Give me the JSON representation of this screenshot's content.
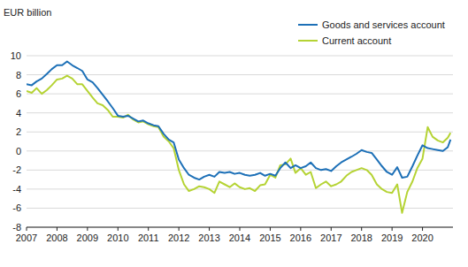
{
  "chart_data": {
    "type": "line",
    "y_label": "EUR billion",
    "x": [
      2007.0,
      2007.17,
      2007.33,
      2007.5,
      2007.67,
      2007.83,
      2008.0,
      2008.17,
      2008.33,
      2008.5,
      2008.67,
      2008.83,
      2009.0,
      2009.17,
      2009.33,
      2009.5,
      2009.67,
      2009.83,
      2010.0,
      2010.17,
      2010.33,
      2010.5,
      2010.67,
      2010.83,
      2011.0,
      2011.17,
      2011.33,
      2011.5,
      2011.67,
      2011.83,
      2012.0,
      2012.17,
      2012.33,
      2012.5,
      2012.67,
      2012.83,
      2013.0,
      2013.17,
      2013.33,
      2013.5,
      2013.67,
      2013.83,
      2014.0,
      2014.17,
      2014.33,
      2014.5,
      2014.67,
      2014.83,
      2015.0,
      2015.17,
      2015.33,
      2015.5,
      2015.67,
      2015.83,
      2016.0,
      2016.17,
      2016.33,
      2016.5,
      2016.67,
      2016.83,
      2017.0,
      2017.17,
      2017.33,
      2017.5,
      2017.67,
      2017.83,
      2018.0,
      2018.17,
      2018.33,
      2018.5,
      2018.67,
      2018.83,
      2019.0,
      2019.17,
      2019.33,
      2019.5,
      2019.67,
      2019.83,
      2020.0,
      2020.17,
      2020.33,
      2020.5,
      2020.67,
      2020.83,
      2020.92
    ],
    "series": [
      {
        "name": "Goods and services account",
        "color": "#1d70b7",
        "values": [
          7.0,
          6.9,
          7.3,
          7.6,
          8.1,
          8.6,
          9.0,
          9.0,
          9.4,
          9.0,
          8.7,
          8.4,
          7.5,
          7.2,
          6.6,
          5.9,
          5.2,
          4.5,
          3.7,
          3.6,
          3.7,
          3.4,
          3.1,
          3.2,
          2.9,
          2.7,
          2.6,
          1.8,
          1.2,
          0.9,
          -0.9,
          -1.8,
          -2.5,
          -2.8,
          -3.0,
          -2.7,
          -2.5,
          -2.7,
          -2.2,
          -2.3,
          -2.2,
          -2.4,
          -2.3,
          -2.5,
          -2.6,
          -2.5,
          -2.3,
          -2.6,
          -2.4,
          -2.6,
          -1.8,
          -1.2,
          -1.8,
          -1.5,
          -1.8,
          -1.6,
          -1.2,
          -1.8,
          -2.0,
          -1.9,
          -2.1,
          -1.6,
          -1.2,
          -0.9,
          -0.6,
          -0.3,
          0.1,
          -0.1,
          -0.2,
          -0.9,
          -1.6,
          -2.2,
          -2.5,
          -1.7,
          -2.8,
          -2.7,
          -1.6,
          -0.5,
          0.6,
          0.3,
          0.2,
          0.1,
          0.0,
          0.4,
          1.2
        ]
      },
      {
        "name": "Current account",
        "color": "#b5d334",
        "values": [
          6.3,
          6.1,
          6.6,
          6.0,
          6.4,
          6.9,
          7.5,
          7.6,
          7.9,
          7.6,
          7.0,
          7.0,
          6.3,
          5.6,
          5.0,
          4.8,
          4.3,
          3.6,
          3.6,
          3.5,
          3.8,
          3.3,
          3.0,
          3.1,
          2.8,
          2.6,
          2.5,
          1.5,
          1.0,
          0.3,
          -2.0,
          -3.5,
          -4.2,
          -4.0,
          -3.7,
          -3.8,
          -4.0,
          -4.4,
          -3.2,
          -3.5,
          -3.8,
          -3.4,
          -3.8,
          -4.0,
          -3.9,
          -4.2,
          -3.6,
          -3.5,
          -2.5,
          -2.8,
          -1.5,
          -1.4,
          -0.8,
          -2.3,
          -1.8,
          -2.5,
          -2.2,
          -3.9,
          -3.5,
          -3.2,
          -3.7,
          -3.5,
          -3.2,
          -2.6,
          -2.2,
          -2.0,
          -1.8,
          -2.0,
          -2.5,
          -3.5,
          -4.0,
          -4.3,
          -4.4,
          -3.5,
          -6.5,
          -4.3,
          -3.2,
          -1.8,
          -0.8,
          2.5,
          1.5,
          1.1,
          0.9,
          1.4,
          1.9
        ]
      }
    ],
    "xlim": [
      2007,
      2021
    ],
    "xticks": [
      2007,
      2008,
      2009,
      2010,
      2011,
      2012,
      2013,
      2014,
      2015,
      2016,
      2017,
      2018,
      2019,
      2020
    ],
    "ylim": [
      -8,
      10
    ],
    "yticks": [
      -8,
      -6,
      -4,
      -2,
      0,
      2,
      4,
      6,
      8,
      10
    ],
    "grid": true,
    "legend": "upper right"
  }
}
